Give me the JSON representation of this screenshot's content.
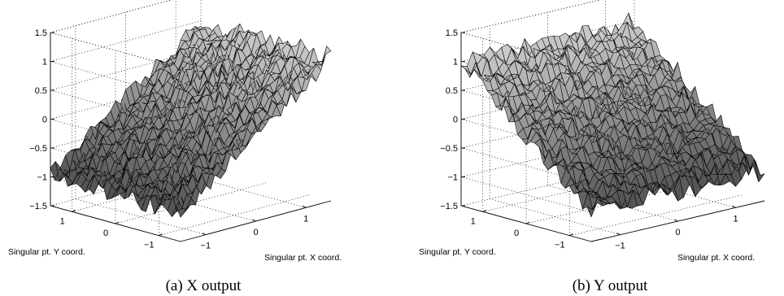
{
  "chart_data": [
    {
      "type": "surface",
      "caption": "(a) X output",
      "xlabel": "Singular pt. X coord.",
      "ylabel": "Singular pt. Y coord.",
      "zlabel": "",
      "xlim": [
        -1.5,
        1.5
      ],
      "ylim": [
        -1.5,
        1.5
      ],
      "zlim": [
        -1.5,
        1.5
      ],
      "xticks": [
        "−1",
        "0",
        "1"
      ],
      "yticks": [
        "−1",
        "0",
        "1"
      ],
      "zticks": [
        "1.5",
        "1",
        "0.5",
        "0",
        "−0.5",
        "−1",
        "−1.5"
      ],
      "grid": true,
      "colormap": "gray",
      "function": "z ≈ x (noisy)",
      "grid_samples": [
        -1.5,
        -1.0,
        -0.5,
        0.0,
        0.5,
        1.0,
        1.5
      ],
      "z_samples": [
        [
          -1.5,
          -1.0,
          -0.5,
          0.0,
          0.5,
          1.0,
          1.5
        ],
        [
          -1.5,
          -1.0,
          -0.5,
          0.0,
          0.5,
          1.0,
          1.5
        ],
        [
          -1.5,
          -1.0,
          -0.5,
          0.0,
          0.5,
          1.0,
          1.5
        ],
        [
          -1.5,
          -1.0,
          -0.5,
          0.0,
          0.5,
          1.0,
          1.5
        ],
        [
          -1.5,
          -1.0,
          -0.5,
          0.0,
          0.5,
          1.0,
          1.5
        ],
        [
          -1.5,
          -1.0,
          -0.5,
          0.0,
          0.5,
          1.0,
          1.5
        ],
        [
          -1.5,
          -1.0,
          -0.5,
          0.0,
          0.5,
          1.0,
          1.5
        ]
      ]
    },
    {
      "type": "surface",
      "caption": "(b) Y output",
      "xlabel": "Singular pt. X coord.",
      "ylabel": "Singular pt. Y coord.",
      "zlabel": "",
      "xlim": [
        -1.5,
        1.5
      ],
      "ylim": [
        -1.5,
        1.5
      ],
      "zlim": [
        -1.5,
        1.5
      ],
      "xticks": [
        "−1",
        "0",
        "1"
      ],
      "yticks": [
        "−1",
        "0",
        "1"
      ],
      "zticks": [
        "1.5",
        "1",
        "0.5",
        "0",
        "−0.5",
        "−1",
        "−1.5"
      ],
      "grid": true,
      "colormap": "gray",
      "function": "z ≈ y (noisy)",
      "grid_samples": [
        -1.5,
        -1.0,
        -0.5,
        0.0,
        0.5,
        1.0,
        1.5
      ],
      "z_samples": [
        [
          -1.5,
          -1.5,
          -1.5,
          -1.5,
          -1.5,
          -1.5,
          -1.5
        ],
        [
          -1.0,
          -1.0,
          -1.0,
          -1.0,
          -1.0,
          -1.0,
          -1.0
        ],
        [
          -0.5,
          -0.5,
          -0.5,
          -0.5,
          -0.5,
          -0.5,
          -0.5
        ],
        [
          0.0,
          0.0,
          0.0,
          0.0,
          0.0,
          0.0,
          0.0
        ],
        [
          0.5,
          0.5,
          0.5,
          0.5,
          0.5,
          0.5,
          0.5
        ],
        [
          1.0,
          1.0,
          1.0,
          1.0,
          1.0,
          1.0,
          1.0
        ],
        [
          1.5,
          1.5,
          1.5,
          1.5,
          1.5,
          1.5,
          1.5
        ]
      ]
    }
  ]
}
